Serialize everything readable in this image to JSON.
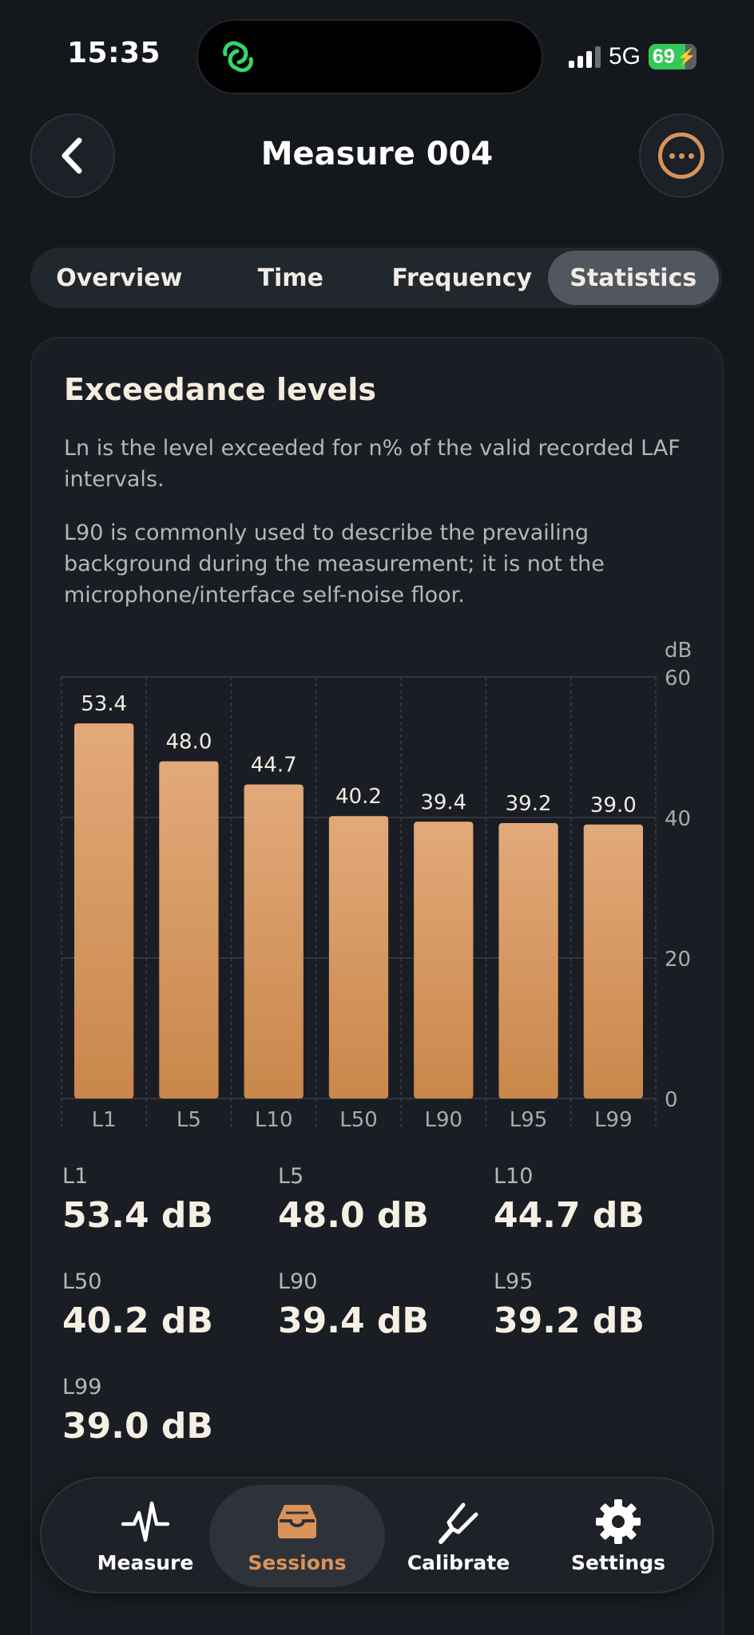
{
  "status_bar": {
    "time": "15:35",
    "network": "5G",
    "battery": "69"
  },
  "header": {
    "title": "Measure 004"
  },
  "tabs": [
    {
      "label": "Overview",
      "active": false
    },
    {
      "label": "Time",
      "active": false
    },
    {
      "label": "Frequency",
      "active": false
    },
    {
      "label": "Statistics",
      "active": true
    }
  ],
  "card": {
    "title": "Exceedance levels",
    "description_1": "Ln is the level exceeded for n% of the valid recorded LAF intervals.",
    "description_2": "L90 is commonly used to describe the prevailing background during the measurement; it is not the microphone/interface self-noise floor."
  },
  "chart_data": {
    "type": "bar",
    "categories": [
      "L1",
      "L5",
      "L10",
      "L50",
      "L90",
      "L95",
      "L99"
    ],
    "values": [
      53.4,
      48.0,
      44.7,
      40.2,
      39.4,
      39.2,
      39.0
    ],
    "data_labels": [
      "53.4",
      "48.0",
      "44.7",
      "40.2",
      "39.4",
      "39.2",
      "39.0"
    ],
    "ylabel": "dB",
    "ylim": [
      0,
      60
    ],
    "yticks": [
      "0",
      "20",
      "40",
      "60"
    ],
    "grid": true,
    "bar_color": "#d99b66"
  },
  "stats": [
    {
      "label": "L1",
      "value": "53.4 dB"
    },
    {
      "label": "L5",
      "value": "48.0 dB"
    },
    {
      "label": "L10",
      "value": "44.7 dB"
    },
    {
      "label": "L50",
      "value": "40.2 dB"
    },
    {
      "label": "L90",
      "value": "39.4 dB"
    },
    {
      "label": "L95",
      "value": "39.2 dB"
    },
    {
      "label": "L99",
      "value": "39.0 dB"
    }
  ],
  "nav": [
    {
      "label": "Measure",
      "icon": "waveform-icon",
      "active": false
    },
    {
      "label": "Sessions",
      "icon": "tray-icon",
      "active": true
    },
    {
      "label": "Calibrate",
      "icon": "tuning-fork-icon",
      "active": false
    },
    {
      "label": "Settings",
      "icon": "gear-icon",
      "active": false
    }
  ],
  "colors": {
    "accent": "#d99358",
    "background": "#14171c",
    "card": "#1a1e24"
  }
}
